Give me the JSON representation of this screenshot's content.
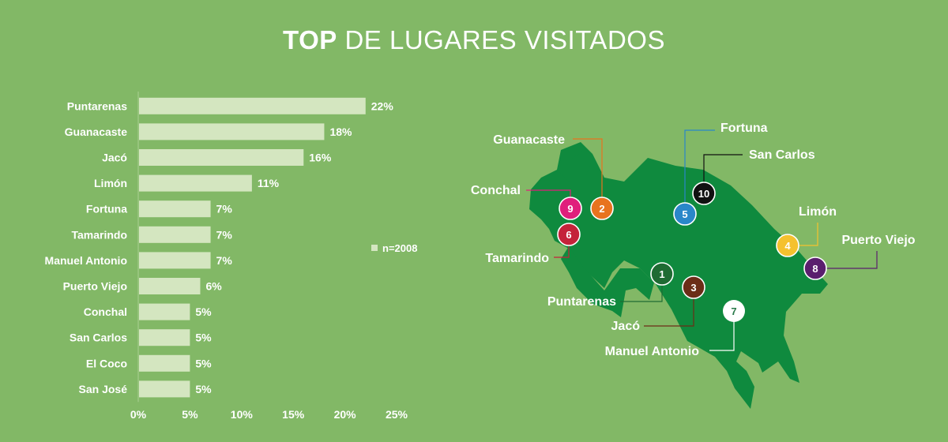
{
  "title": {
    "bold": "TOP",
    "rest": "DE LUGARES VISITADOS"
  },
  "chart_data": {
    "type": "bar",
    "orientation": "horizontal",
    "categories": [
      "Puntarenas",
      "Guanacaste",
      "Jacó",
      "Limón",
      "Fortuna",
      "Tamarindo",
      "Manuel Antonio",
      "Puerto Viejo",
      "Conchal",
      "San Carlos",
      "El Coco",
      "San José"
    ],
    "values": [
      22,
      18,
      16,
      11,
      7,
      7,
      7,
      6,
      5,
      5,
      5,
      5
    ],
    "data_labels": [
      "22%",
      "18%",
      "16%",
      "11%",
      "7%",
      "7%",
      "7%",
      "6%",
      "5%",
      "5%",
      "5%",
      "5%"
    ],
    "xlim": [
      0,
      25
    ],
    "xticks": [
      "0%",
      "5%",
      "10%",
      "15%",
      "20%",
      "25%"
    ],
    "legend": "n=2008",
    "legend_position": "right",
    "grid": false,
    "bar_color": "#d4e6c0"
  },
  "map": {
    "land_color": "#0f8a3e",
    "markers": [
      {
        "num": "1",
        "label": "Puntarenas",
        "color": "#1f6b33"
      },
      {
        "num": "2",
        "label": "Guanacaste",
        "color": "#e8731e"
      },
      {
        "num": "3",
        "label": "Jacó",
        "color": "#6b2d17"
      },
      {
        "num": "4",
        "label": "Limón",
        "color": "#f5c12e"
      },
      {
        "num": "5",
        "label": "Fortuna",
        "color": "#2a87c9"
      },
      {
        "num": "6",
        "label": "Tamarindo",
        "color": "#c4233a"
      },
      {
        "num": "7",
        "label": "Manuel Antonio",
        "color": "#ffffff"
      },
      {
        "num": "8",
        "label": "Puerto Viejo",
        "color": "#5a1f6e"
      },
      {
        "num": "9",
        "label": "Conchal",
        "color": "#e01f7c"
      },
      {
        "num": "10",
        "label": "San Carlos",
        "color": "#111111"
      }
    ]
  }
}
